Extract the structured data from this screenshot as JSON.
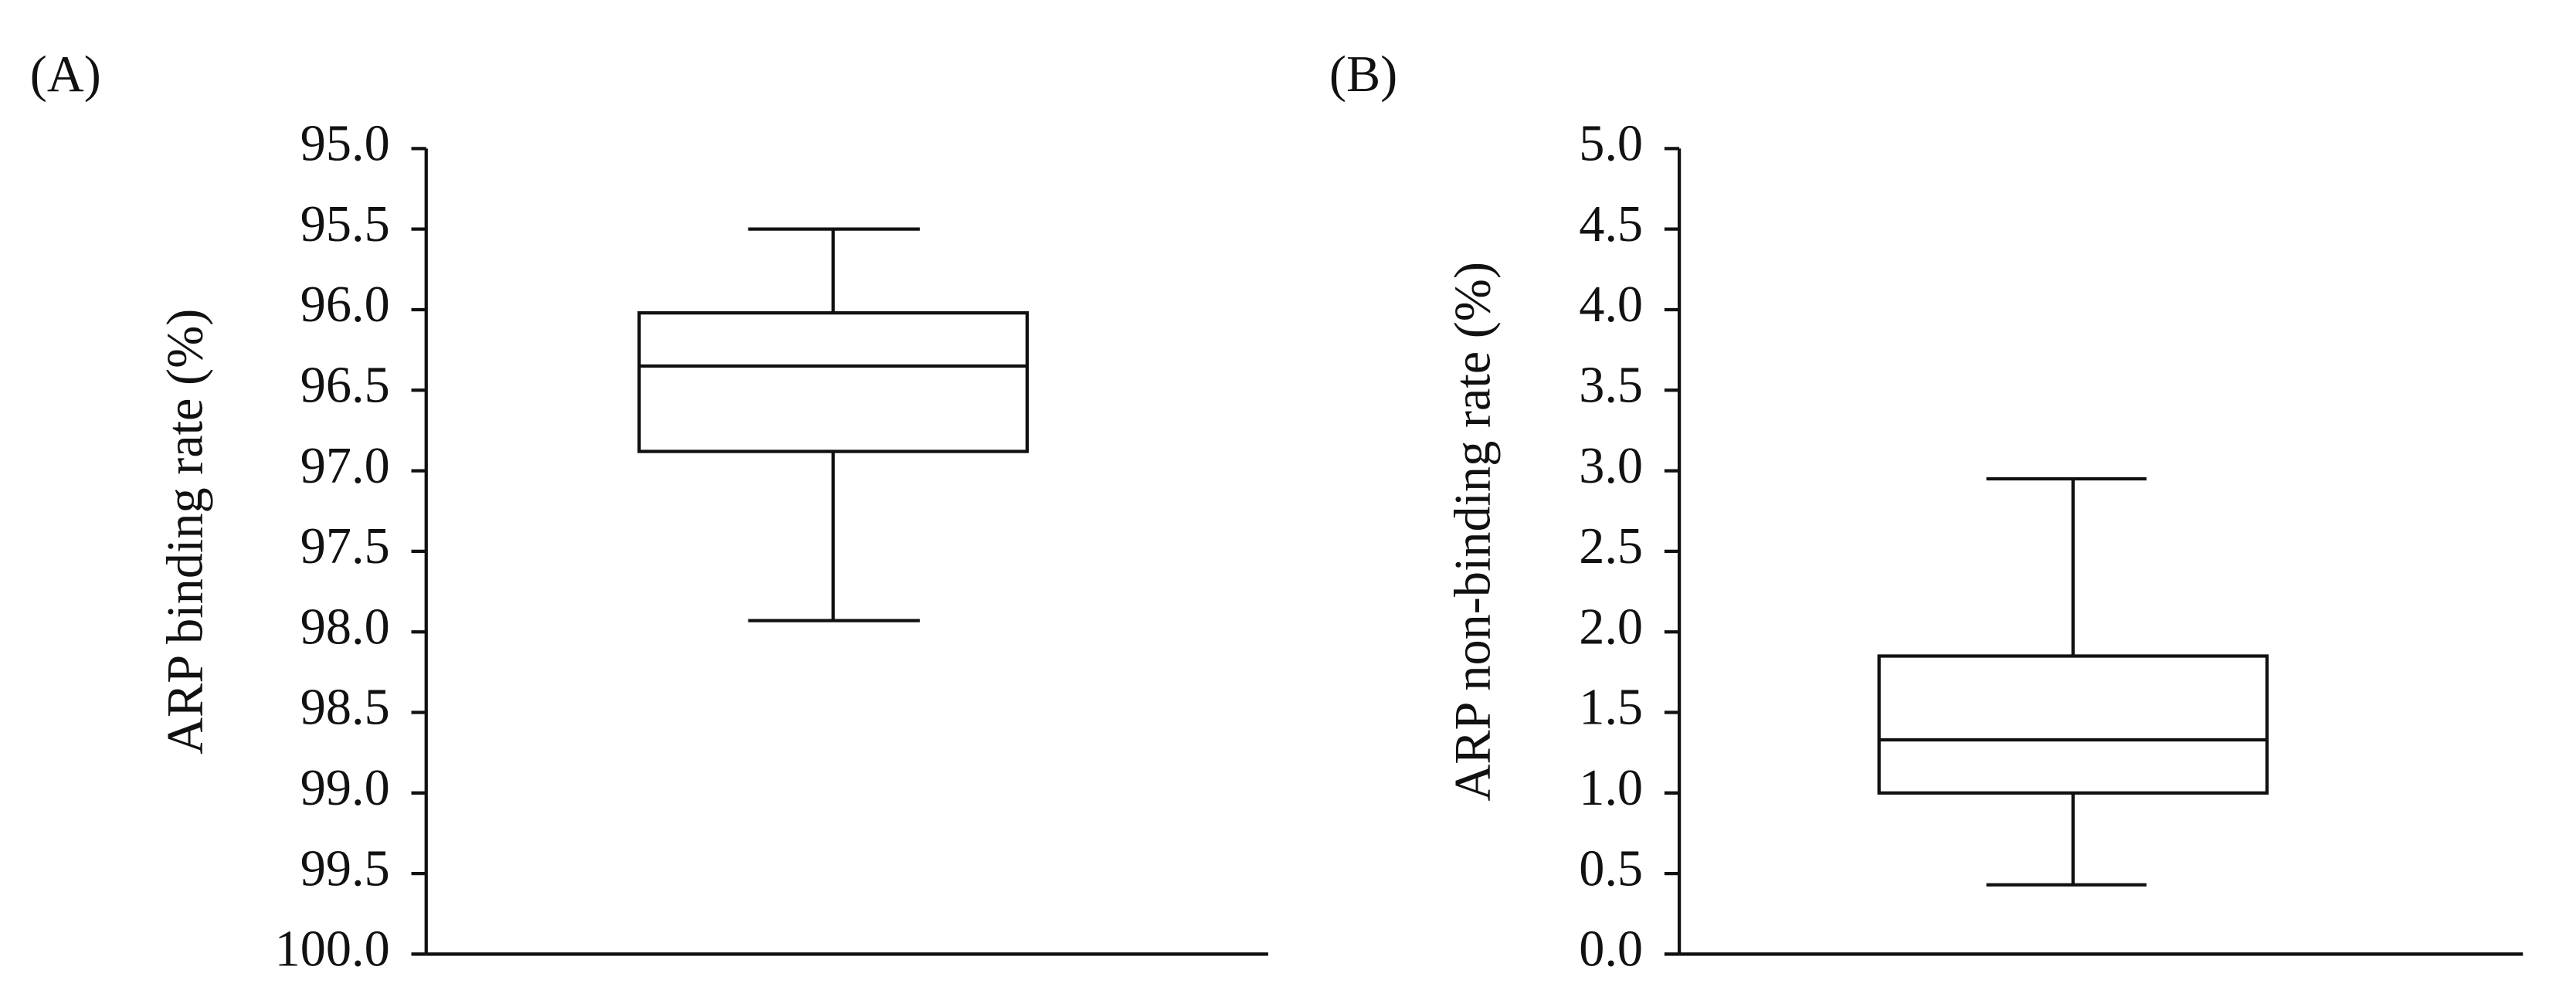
{
  "chart_data": [
    {
      "type": "box",
      "panel_label": "(A)",
      "y_label": "ARP binding rate (%)",
      "ylim": [
        95,
        100
      ],
      "y_inverted": true,
      "yticks": [
        {
          "value": 95,
          "label": "95.0"
        },
        95.5,
        {
          "value": 96,
          "label": "96.0"
        },
        96.5,
        {
          "value": 97,
          "label": "97.0"
        },
        97.5,
        {
          "value": 98,
          "label": "98.0"
        },
        98.5,
        {
          "value": 99,
          "label": "99.0"
        },
        99.5,
        {
          "value": 100,
          "label": "100.0"
        }
      ],
      "box": {
        "min": 95.5,
        "q1": 96.02,
        "median": 96.35,
        "q3": 96.88,
        "max": 97.93
      }
    },
    {
      "type": "box",
      "panel_label": "(B)",
      "y_label": "ARP non-binding rate (%)",
      "ylim": [
        0,
        5
      ],
      "y_inverted": false,
      "yticks": [
        {
          "value": 0,
          "label": "0.0"
        },
        0.5,
        {
          "value": 1,
          "label": "1.0"
        },
        1.5,
        {
          "value": 2,
          "label": "2.0"
        },
        2.5,
        {
          "value": 3,
          "label": "3.0"
        },
        3.5,
        {
          "value": 4,
          "label": "4.0"
        },
        4.5,
        {
          "value": 5,
          "label": "5.0"
        }
      ],
      "box": {
        "min": 0.43,
        "q1": 1.0,
        "median": 1.33,
        "q3": 1.85,
        "max": 2.95
      }
    }
  ]
}
